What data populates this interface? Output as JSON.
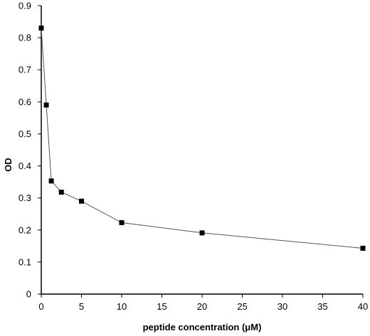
{
  "chart_data": {
    "type": "line",
    "title": "",
    "xlabel": "peptide concentration (μM)",
    "ylabel": "OD",
    "xlim": [
      0,
      40
    ],
    "ylim": [
      0,
      0.9
    ],
    "xticks": [
      0,
      5,
      10,
      15,
      20,
      25,
      30,
      35,
      40
    ],
    "yticks": [
      0,
      0.1,
      0.2,
      0.3,
      0.4,
      0.5,
      0.6,
      0.7,
      0.8,
      0.9
    ],
    "xtick_labels": [
      "0",
      "5",
      "10",
      "15",
      "20",
      "25",
      "30",
      "35",
      "40"
    ],
    "ytick_labels": [
      "0",
      "0.1",
      "0.2",
      "0.3",
      "0.4",
      "0.5",
      "0.6",
      "0.7",
      "0.8",
      "0.9"
    ],
    "grid": false,
    "legend": "none",
    "series": [
      {
        "x": [
          0,
          0.625,
          1.25,
          2.5,
          5,
          10,
          20,
          40
        ],
        "y": [
          0.83,
          0.59,
          0.353,
          0.318,
          0.29,
          0.223,
          0.191,
          0.143
        ]
      }
    ]
  }
}
